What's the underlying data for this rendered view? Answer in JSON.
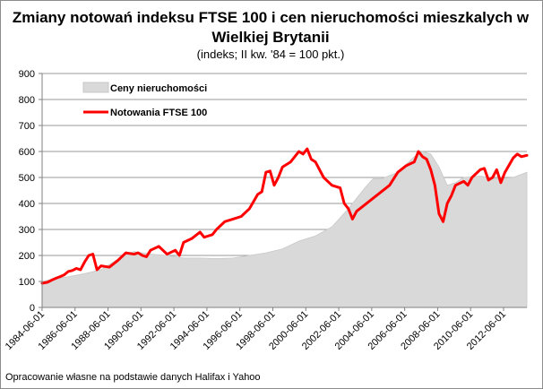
{
  "title": "Zmiany notowań indeksu FTSE 100 i cen nieruchomości mieszkalych w Wielkiej Brytanii",
  "subtitle": "(indeks; II kw. '84 = 100 pkt.)",
  "source": "Opracowanie własne na podstawie danych Halifax i Yahoo",
  "chart_data": {
    "type": "area",
    "title": "Zmiany notowań indeksu FTSE 100 i cen nieruchomości mieszkalych w Wielkiej Brytanii",
    "subtitle": "(indeks; II kw. '84 = 100 pkt.)",
    "xlabel": "",
    "ylabel": "",
    "ylim": [
      0,
      900
    ],
    "yticks": [
      0,
      100,
      200,
      300,
      400,
      500,
      600,
      700,
      800,
      900
    ],
    "xlim": [
      1984.42,
      2013.83
    ],
    "xticks": [
      "1984-06-01",
      "1986-06-01",
      "1988-06-01",
      "1990-06-01",
      "1992-06-01",
      "1994-06-01",
      "1996-06-01",
      "1998-06-01",
      "2000-06-01",
      "2002-06-01",
      "2004-06-01",
      "2006-06-01",
      "2008-06-01",
      "2010-06-01",
      "2012-06-01"
    ],
    "grid": "horizontal",
    "legend_position": "top-left",
    "series": [
      {
        "name": "Ceny nieruchomości",
        "type": "area",
        "color": "#d9d9d9",
        "x": [
          1984.42,
          1985.0,
          1986.0,
          1987.0,
          1988.0,
          1988.5,
          1989.0,
          1989.5,
          1990.0,
          1990.5,
          1991.0,
          1992.0,
          1993.0,
          1994.0,
          1995.0,
          1996.0,
          1997.0,
          1998.0,
          1999.0,
          2000.0,
          2001.0,
          2002.0,
          2003.0,
          2004.0,
          2004.5,
          2005.0,
          2006.0,
          2007.0,
          2007.5,
          2008.0,
          2008.5,
          2009.0,
          2009.5,
          2010.0,
          2011.0,
          2012.0,
          2013.0,
          2013.83
        ],
        "values": [
          100,
          108,
          118,
          130,
          145,
          165,
          185,
          205,
          215,
          210,
          205,
          200,
          190,
          190,
          188,
          190,
          200,
          210,
          225,
          255,
          275,
          310,
          380,
          460,
          495,
          495,
          520,
          580,
          600,
          590,
          540,
          470,
          480,
          500,
          505,
          495,
          500,
          520
        ]
      },
      {
        "name": "Notowania FTSE 100",
        "type": "line",
        "color": "#ff0000",
        "x": [
          1984.42,
          1984.75,
          1985.0,
          1985.25,
          1985.5,
          1985.75,
          1986.0,
          1986.25,
          1986.5,
          1986.75,
          1987.0,
          1987.25,
          1987.5,
          1987.75,
          1988.0,
          1988.5,
          1989.0,
          1989.5,
          1990.0,
          1990.25,
          1990.5,
          1990.75,
          1991.0,
          1991.5,
          1992.0,
          1992.5,
          1992.75,
          1993.0,
          1993.5,
          1994.0,
          1994.25,
          1994.5,
          1994.75,
          1995.0,
          1995.5,
          1996.0,
          1996.5,
          1997.0,
          1997.5,
          1997.75,
          1998.0,
          1998.25,
          1998.5,
          1998.75,
          1999.0,
          1999.5,
          2000.0,
          2000.25,
          2000.5,
          2000.75,
          2001.0,
          2001.5,
          2002.0,
          2002.25,
          2002.5,
          2002.75,
          2003.0,
          2003.25,
          2003.5,
          2004.0,
          2004.5,
          2005.0,
          2005.5,
          2006.0,
          2006.5,
          2007.0,
          2007.25,
          2007.5,
          2007.75,
          2008.0,
          2008.25,
          2008.5,
          2008.75,
          2009.0,
          2009.25,
          2009.5,
          2010.0,
          2010.25,
          2010.5,
          2011.0,
          2011.25,
          2011.5,
          2011.75,
          2012.0,
          2012.25,
          2012.5,
          2013.0,
          2013.25,
          2013.5,
          2013.83
        ],
        "values": [
          93,
          97,
          105,
          112,
          118,
          125,
          138,
          142,
          150,
          145,
          175,
          200,
          205,
          145,
          160,
          155,
          180,
          210,
          205,
          210,
          200,
          195,
          220,
          235,
          205,
          220,
          200,
          250,
          265,
          290,
          270,
          275,
          280,
          300,
          330,
          340,
          350,
          380,
          435,
          445,
          520,
          525,
          470,
          500,
          540,
          560,
          600,
          590,
          610,
          570,
          560,
          500,
          470,
          465,
          460,
          400,
          380,
          340,
          370,
          395,
          420,
          445,
          470,
          520,
          545,
          560,
          600,
          580,
          570,
          530,
          470,
          360,
          330,
          400,
          430,
          470,
          485,
          470,
          500,
          530,
          535,
          490,
          500,
          530,
          480,
          520,
          575,
          590,
          580,
          585
        ]
      }
    ]
  }
}
